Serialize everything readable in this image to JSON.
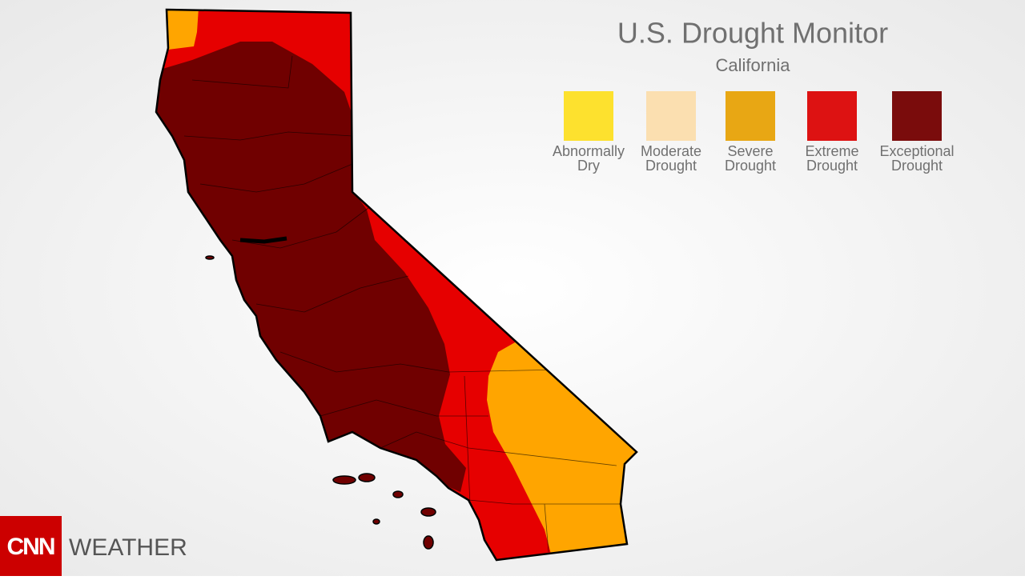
{
  "header": {
    "title": "U.S. Drought Monitor",
    "subtitle": "California"
  },
  "legend": [
    {
      "lines": [
        "Abnormally",
        "Dry"
      ],
      "color": "#fde12e"
    },
    {
      "lines": [
        "Moderate",
        "Drought"
      ],
      "color": "#fbdfb0"
    },
    {
      "lines": [
        "Severe",
        "Drought"
      ],
      "color": "#e8a714"
    },
    {
      "lines": [
        "Extreme",
        "Drought"
      ],
      "color": "#dd1212"
    },
    {
      "lines": [
        "Exceptional",
        "Drought"
      ],
      "color": "#7a0c0c"
    }
  ],
  "branding": {
    "logo": "CNN",
    "section": "WEATHER"
  }
}
